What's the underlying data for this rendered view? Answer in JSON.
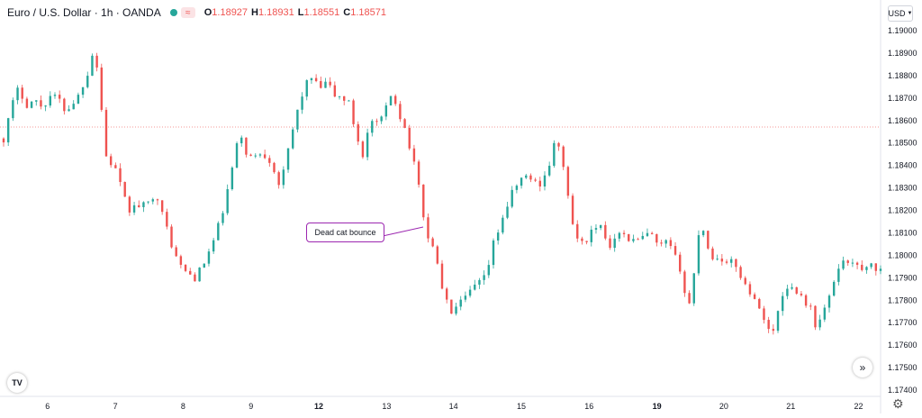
{
  "legend": {
    "symbol": "Euro / U.S. Dollar · 1h · OANDA",
    "wave_glyph": "≈",
    "open": "1.18927",
    "high": "1.18931",
    "low": "1.18551",
    "close": "1.18571",
    "open_prefix": "O",
    "high_prefix": "H",
    "low_prefix": "L",
    "close_prefix": "C"
  },
  "currency_label": "USD",
  "logo_text": "TV",
  "annotation": {
    "text": "Dead cat bounce"
  },
  "colors": {
    "up": "#26a69a",
    "down": "#ef5350",
    "price_line": "#ef5350",
    "callout_border": "#9c27b0"
  },
  "icons": [
    "tradingview-logo-icon",
    "scroll-to-realtime-icon",
    "settings-gear-icon",
    "chevron-down-icon"
  ],
  "chart_data": {
    "type": "candlestick",
    "y_ticks": [
      "1.19000",
      "1.18900",
      "1.18800",
      "1.18700",
      "1.18600",
      "1.18500",
      "1.18400",
      "1.18300",
      "1.18200",
      "1.18100",
      "1.18000",
      "1.17900",
      "1.17800",
      "1.17700",
      "1.17600",
      "1.17500",
      "1.17400"
    ],
    "ylim": [
      1.1737,
      1.1912
    ],
    "x_ticks": [
      {
        "label": "6",
        "bold": false,
        "pos": 0.054
      },
      {
        "label": "7",
        "bold": false,
        "pos": 0.131
      },
      {
        "label": "8",
        "bold": false,
        "pos": 0.208
      },
      {
        "label": "9",
        "bold": false,
        "pos": 0.285
      },
      {
        "label": "12",
        "bold": true,
        "pos": 0.362
      },
      {
        "label": "13",
        "bold": false,
        "pos": 0.439
      },
      {
        "label": "14",
        "bold": false,
        "pos": 0.515
      },
      {
        "label": "15",
        "bold": false,
        "pos": 0.592
      },
      {
        "label": "16",
        "bold": false,
        "pos": 0.669
      },
      {
        "label": "19",
        "bold": true,
        "pos": 0.746
      },
      {
        "label": "20",
        "bold": false,
        "pos": 0.822
      },
      {
        "label": "21",
        "bold": false,
        "pos": 0.898
      },
      {
        "label": "22",
        "bold": false,
        "pos": 0.975
      }
    ],
    "last_price": 1.18571,
    "path": [
      [
        0,
        1.1852
      ],
      [
        6,
        1.1868
      ],
      [
        10,
        1.1875
      ],
      [
        14,
        1.1867
      ],
      [
        20,
        1.1869
      ],
      [
        25,
        1.1866
      ],
      [
        30,
        1.1871
      ],
      [
        35,
        1.187
      ],
      [
        40,
        1.1864
      ],
      [
        48,
        1.1871
      ],
      [
        55,
        1.1883
      ],
      [
        58,
        1.1893
      ],
      [
        62,
        1.1875
      ],
      [
        65,
        1.1845
      ],
      [
        72,
        1.1838
      ],
      [
        80,
        1.182
      ],
      [
        86,
        1.1822
      ],
      [
        92,
        1.1822
      ],
      [
        98,
        1.1829
      ],
      [
        101,
        1.182
      ],
      [
        106,
        1.181
      ],
      [
        110,
        1.18
      ],
      [
        116,
        1.1793
      ],
      [
        123,
        1.179
      ],
      [
        128,
        1.1795
      ],
      [
        136,
        1.1808
      ],
      [
        142,
        1.1822
      ],
      [
        148,
        1.1842
      ],
      [
        152,
        1.1855
      ],
      [
        156,
        1.1846
      ],
      [
        160,
        1.1843
      ],
      [
        166,
        1.1846
      ],
      [
        172,
        1.1842
      ],
      [
        178,
        1.183
      ],
      [
        185,
        1.1853
      ],
      [
        191,
        1.187
      ],
      [
        197,
        1.188
      ],
      [
        203,
        1.1874
      ],
      [
        208,
        1.1877
      ],
      [
        213,
        1.1871
      ],
      [
        218,
        1.187
      ],
      [
        223,
        1.1867
      ],
      [
        226,
        1.1855
      ],
      [
        231,
        1.1845
      ],
      [
        236,
        1.186
      ],
      [
        240,
        1.1858
      ],
      [
        245,
        1.1863
      ],
      [
        250,
        1.1873
      ],
      [
        255,
        1.1862
      ],
      [
        259,
        1.1855
      ],
      [
        263,
        1.1843
      ],
      [
        268,
        1.1828
      ],
      [
        272,
        1.1808
      ],
      [
        276,
        1.1805
      ],
      [
        280,
        1.1792
      ],
      [
        284,
        1.178
      ],
      [
        288,
        1.1775
      ],
      [
        292,
        1.1777
      ],
      [
        297,
        1.1781
      ],
      [
        303,
        1.1786
      ],
      [
        310,
        1.179
      ],
      [
        315,
        1.1805
      ],
      [
        320,
        1.1815
      ],
      [
        326,
        1.1826
      ],
      [
        332,
        1.1834
      ],
      [
        338,
        1.1835
      ],
      [
        344,
        1.1831
      ],
      [
        350,
        1.1838
      ],
      [
        354,
        1.1849
      ],
      [
        359,
        1.1846
      ],
      [
        363,
        1.1825
      ],
      [
        367,
        1.181
      ],
      [
        372,
        1.1805
      ],
      [
        378,
        1.181
      ],
      [
        384,
        1.1812
      ],
      [
        390,
        1.1804
      ],
      [
        395,
        1.1812
      ],
      [
        400,
        1.1808
      ],
      [
        406,
        1.1806
      ],
      [
        412,
        1.1808
      ],
      [
        416,
        1.181
      ],
      [
        421,
        1.1803
      ],
      [
        427,
        1.1806
      ],
      [
        431,
        1.18
      ],
      [
        436,
        1.1793
      ],
      [
        440,
        1.1774
      ],
      [
        445,
        1.1796
      ],
      [
        448,
        1.1817
      ],
      [
        452,
        1.1806
      ],
      [
        456,
        1.1798
      ],
      [
        460,
        1.18
      ],
      [
        465,
        1.1796
      ],
      [
        470,
        1.1797
      ],
      [
        474,
        1.1791
      ],
      [
        478,
        1.1785
      ],
      [
        482,
        1.1783
      ],
      [
        486,
        1.1775
      ],
      [
        490,
        1.1772
      ],
      [
        494,
        1.1763
      ],
      [
        499,
        1.1778
      ],
      [
        503,
        1.1787
      ],
      [
        507,
        1.1785
      ],
      [
        511,
        1.1784
      ],
      [
        515,
        1.178
      ],
      [
        519,
        1.1776
      ],
      [
        523,
        1.1767
      ],
      [
        527,
        1.1775
      ],
      [
        532,
        1.1782
      ],
      [
        536,
        1.1795
      ],
      [
        541,
        1.1797
      ],
      [
        546,
        1.1798
      ],
      [
        551,
        1.1792
      ],
      [
        555,
        1.1796
      ],
      [
        559,
        1.1795
      ],
      [
        564,
        1.1793
      ]
    ],
    "path_x_max": 564,
    "seed": 17,
    "candle_step": 3
  }
}
